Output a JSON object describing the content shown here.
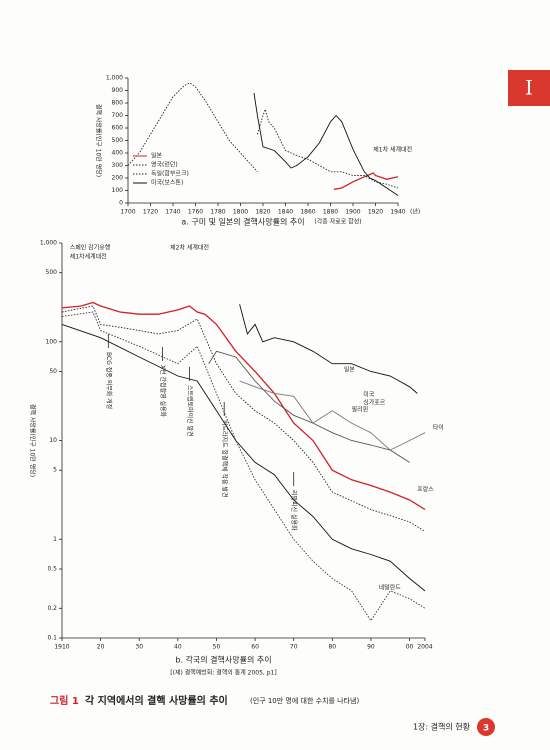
{
  "section_tab": "I",
  "chart_data": [
    {
      "type": "line",
      "caption": "a. 구미 및 일본의 결핵사망률의 추이",
      "source": "(각종 자료로 합성)",
      "ylabel": "결핵 사망률(인구 10만 명당)",
      "xlabel": "(년)",
      "xlim": [
        1700,
        1940
      ],
      "xticks": [
        1700,
        1720,
        1740,
        1760,
        1780,
        1800,
        1820,
        1840,
        1860,
        1880,
        1900,
        1920,
        1940
      ],
      "ylim": [
        0,
        1000
      ],
      "yticks": [
        0,
        100,
        200,
        300,
        400,
        500,
        600,
        700,
        800,
        900,
        {
          "value": 1000,
          "label": "1,000"
        }
      ],
      "yscale": "linear",
      "legend": "lower left",
      "annotations": [
        "제1차 세계대전"
      ],
      "series": [
        {
          "name": "일본",
          "color": "#d32027",
          "style": "solid",
          "x": [
            1883,
            1890,
            1900,
            1910,
            1918,
            1920,
            1930,
            1935,
            1940
          ],
          "values": [
            110,
            120,
            170,
            210,
            240,
            220,
            190,
            200,
            210
          ]
        },
        {
          "name": "영국(런던)",
          "color": "#222222",
          "style": "dotted",
          "x": [
            1700,
            1710,
            1720,
            1730,
            1740,
            1750,
            1755,
            1760,
            1770,
            1780,
            1790,
            1800,
            1810,
            1815
          ],
          "values": [
            300,
            400,
            550,
            700,
            850,
            940,
            960,
            930,
            800,
            650,
            500,
            400,
            300,
            250
          ]
        },
        {
          "name": "독일(함부르크)",
          "color": "#222222",
          "style": "dotted",
          "x": [
            1815,
            1820,
            1822,
            1825,
            1830,
            1840,
            1850,
            1860,
            1870,
            1880,
            1890,
            1900,
            1910,
            1920,
            1930,
            1940
          ],
          "values": [
            550,
            700,
            750,
            650,
            600,
            420,
            380,
            350,
            300,
            250,
            250,
            220,
            220,
            170,
            150,
            120
          ]
        },
        {
          "name": "미국(보스톤)",
          "color": "#111111",
          "style": "solid",
          "x": [
            1812,
            1815,
            1820,
            1830,
            1840,
            1845,
            1850,
            1860,
            1870,
            1880,
            1885,
            1890,
            1900,
            1910,
            1915,
            1920,
            1930,
            1940
          ],
          "values": [
            880,
            700,
            450,
            420,
            330,
            280,
            300,
            370,
            480,
            650,
            700,
            650,
            430,
            250,
            200,
            180,
            120,
            60
          ]
        }
      ]
    },
    {
      "type": "line",
      "caption": "b. 각국의 결핵사망률의 추이",
      "source": "[(재) 결핵예방회: 결핵의 통계 2005, p1]",
      "ylabel": "결핵 사망률(인구 10만 명당)",
      "xlim": [
        1910,
        2004
      ],
      "xticks": [
        1910,
        {
          "value": 1920,
          "label": "20"
        },
        {
          "value": 1930,
          "label": "30"
        },
        {
          "value": 1940,
          "label": "40"
        },
        {
          "value": 1950,
          "label": "50"
        },
        {
          "value": 1960,
          "label": "60"
        },
        {
          "value": 1970,
          "label": "70"
        },
        {
          "value": 1980,
          "label": "80"
        },
        {
          "value": 1990,
          "label": "90"
        },
        {
          "value": 2000,
          "label": "00"
        },
        2004
      ],
      "ylim": [
        0.1,
        1000
      ],
      "yticks": [
        0.1,
        0.2,
        0.5,
        1,
        5,
        10,
        50,
        100,
        500,
        {
          "value": 1000,
          "label": "1,000"
        }
      ],
      "yscale": "log",
      "annotations": [
        "스페인 감기유행",
        "제1차세계대전",
        "제2차 세계대전",
        "BCG 접종 의무화 개정",
        "X선 간접촬영 실용화",
        "스트렙토마이신 발견",
        "히드라지드 항결핵제 작용 발견",
        "리팜피신 실용화"
      ],
      "series": [
        {
          "name": "일본",
          "color": "#d32027",
          "style": "solid",
          "x": [
            1910,
            1915,
            1918,
            1920,
            1925,
            1930,
            1935,
            1940,
            1943,
            1945,
            1947,
            1950,
            1955,
            1960,
            1965,
            1970,
            1975,
            1980,
            1985,
            1990,
            1995,
            2000,
            2004
          ],
          "values": [
            220,
            230,
            250,
            230,
            200,
            190,
            190,
            210,
            230,
            200,
            190,
            150,
            80,
            50,
            30,
            15,
            10,
            5,
            4,
            3.5,
            3,
            2.5,
            2
          ]
        },
        {
          "name": "프랑스",
          "color": "#222222",
          "style": "dotted",
          "x": [
            1910,
            1918,
            1920,
            1925,
            1930,
            1935,
            1940,
            1945,
            1950,
            1955,
            1960,
            1965,
            1970,
            1975,
            1980,
            1990,
            2000,
            2004
          ],
          "values": [
            200,
            230,
            150,
            140,
            130,
            120,
            130,
            170,
            60,
            30,
            20,
            15,
            10,
            6,
            3,
            2,
            1.5,
            1.2
          ]
        },
        {
          "name": "미국",
          "color": "#111111",
          "style": "solid",
          "x": [
            1910,
            1920,
            1930,
            1940,
            1945,
            1950,
            1955,
            1960,
            1965,
            1970,
            1975,
            1980,
            1985,
            1990,
            1995,
            2000,
            2004
          ],
          "values": [
            150,
            110,
            70,
            45,
            40,
            20,
            10,
            6,
            4.5,
            2.5,
            1.7,
            1,
            0.8,
            0.7,
            0.6,
            0.4,
            0.3
          ]
        },
        {
          "name": "네덜란드",
          "color": "#333333",
          "style": "dotted",
          "x": [
            1910,
            1918,
            1920,
            1930,
            1940,
            1945,
            1950,
            1955,
            1960,
            1965,
            1970,
            1975,
            1980,
            1985,
            1990,
            1995,
            2000,
            2004
          ],
          "values": [
            180,
            200,
            130,
            90,
            60,
            90,
            30,
            10,
            4,
            2,
            1,
            0.6,
            0.4,
            0.3,
            0.15,
            0.3,
            0.25,
            0.2
          ]
        },
        {
          "name": "필리핀",
          "color": "#111111",
          "style": "solid",
          "x": [
            1956,
            1958,
            1960,
            1962,
            1965,
            1970,
            1975,
            1980,
            1985,
            1990,
            1995,
            2000,
            2002
          ],
          "values": [
            240,
            120,
            150,
            100,
            110,
            100,
            80,
            60,
            60,
            50,
            45,
            35,
            30
          ]
        },
        {
          "name": "싱가포르",
          "color": "#555555",
          "style": "solid",
          "x": [
            1948,
            1950,
            1955,
            1960,
            1965,
            1970,
            1975,
            1980,
            1985,
            1990,
            1995,
            2000
          ],
          "values": [
            60,
            80,
            70,
            40,
            25,
            18,
            15,
            12,
            10,
            9,
            8,
            6
          ]
        },
        {
          "name": "타이",
          "color": "#777777",
          "style": "solid",
          "x": [
            1956,
            1960,
            1965,
            1970,
            1975,
            1980,
            1985,
            1990,
            1995,
            2000,
            2004
          ],
          "values": [
            40,
            35,
            30,
            28,
            15,
            20,
            15,
            12,
            8,
            10,
            12
          ]
        }
      ]
    }
  ],
  "figure": {
    "number": "그림 1",
    "title": "각 지역에서의 결핵 사망률의 추이",
    "note": "(인구 10만 명에 대한 수치를 나타냄)"
  },
  "footer": {
    "chapter": "1장: 결핵의 현황",
    "page": "3"
  }
}
